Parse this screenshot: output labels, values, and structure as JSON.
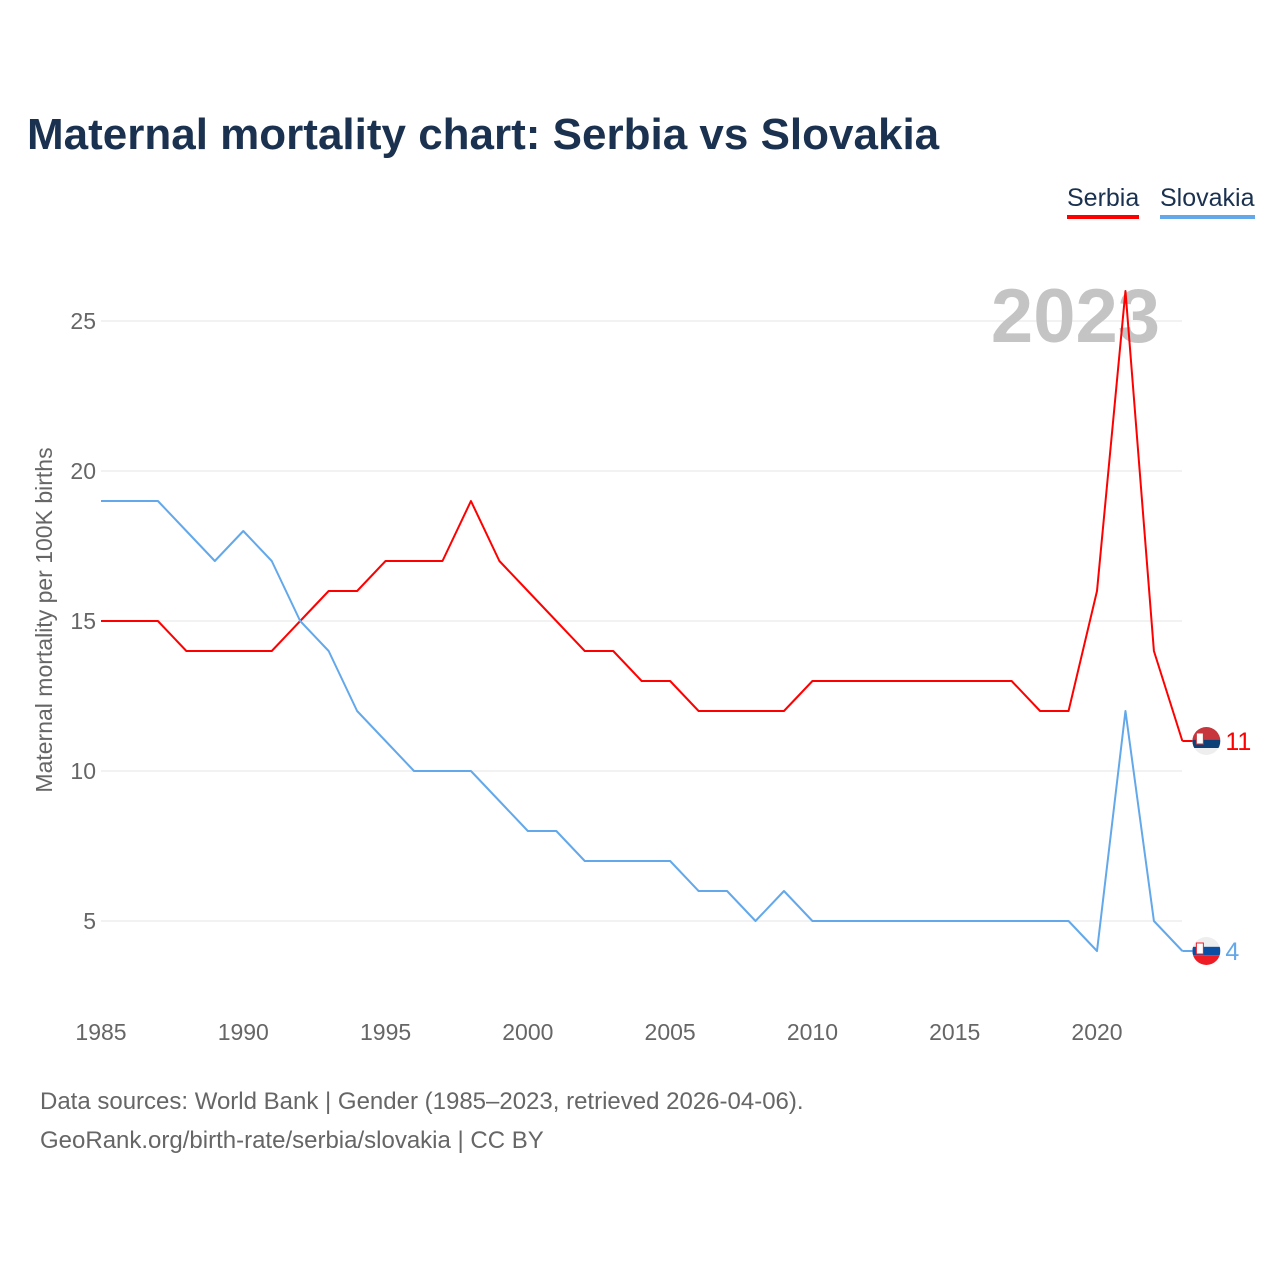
{
  "title": "Maternal mortality chart: Serbia vs Slovakia",
  "legend": [
    "Serbia",
    "Slovakia"
  ],
  "year_watermark": "2023",
  "footer": {
    "line1": "Data sources: World Bank | Gender (1985–2023, retrieved 2026-04-06).",
    "line2": "GeoRank.org/birth-rate/serbia/slovakia | CC BY"
  },
  "chart_data": {
    "type": "line",
    "title": "Maternal mortality chart: Serbia vs Slovakia",
    "xlabel": "",
    "ylabel": "Maternal mortality per 100K births",
    "x": [
      1985,
      1986,
      1987,
      1988,
      1989,
      1990,
      1991,
      1992,
      1993,
      1994,
      1995,
      1996,
      1997,
      1998,
      1999,
      2000,
      2001,
      2002,
      2003,
      2004,
      2005,
      2006,
      2007,
      2008,
      2009,
      2010,
      2011,
      2012,
      2013,
      2014,
      2015,
      2016,
      2017,
      2018,
      2019,
      2020,
      2021,
      2022,
      2023
    ],
    "xticks": [
      "1985",
      "1990",
      "1995",
      "2000",
      "2005",
      "2010",
      "2015",
      "2020"
    ],
    "yticks": [
      "5",
      "10",
      "15",
      "20",
      "25"
    ],
    "xlim": [
      1985,
      2023
    ],
    "ylim": [
      2,
      27
    ],
    "grid": true,
    "legend_position": "top-right",
    "series": [
      {
        "name": "Serbia",
        "color": "#ff0000",
        "end_label": "11",
        "values": [
          15,
          15,
          15,
          14,
          14,
          14,
          14,
          15,
          16,
          16,
          17,
          17,
          17,
          19,
          17,
          16,
          15,
          14,
          14,
          13,
          13,
          12,
          12,
          12,
          12,
          13,
          13,
          13,
          13,
          13,
          13,
          13,
          13,
          12,
          12,
          16,
          26,
          14,
          11
        ]
      },
      {
        "name": "Slovakia",
        "color": "#63a8ea",
        "end_label": "4",
        "values": [
          19,
          19,
          19,
          18,
          17,
          18,
          17,
          15,
          14,
          12,
          11,
          10,
          10,
          10,
          9,
          8,
          8,
          7,
          7,
          7,
          7,
          6,
          6,
          5,
          6,
          5,
          5,
          5,
          5,
          5,
          5,
          5,
          5,
          5,
          5,
          4,
          12,
          5,
          4
        ]
      }
    ]
  }
}
